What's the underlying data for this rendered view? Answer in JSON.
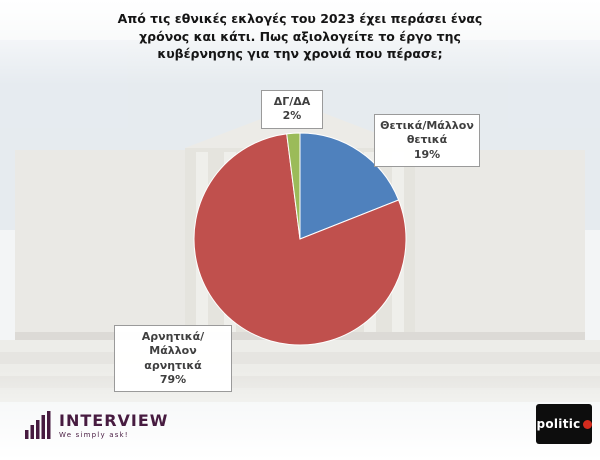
{
  "title": "Από τις εθνικές εκλογές του 2023 έχει περάσει ένας χρόνος και κάτι. Πως αξιολογείτε το έργο της κυβέρνησης για την χρονιά που πέρασε;",
  "chart_data": {
    "type": "pie",
    "labels": [
      "Θετικά/Μάλλον θετικά",
      "Αρνητικά/Μάλλον αρνητικά",
      "ΔΓ/ΔΑ"
    ],
    "keys": [
      "positive",
      "negative",
      "dk-da"
    ],
    "values": [
      19,
      79,
      2
    ],
    "colors": [
      "#4f81bd",
      "#c0504d",
      "#9bbb59"
    ],
    "start_angle_deg": 0,
    "direction": "clockwise",
    "legend": "none",
    "title": "Από τις εθνικές εκλογές του 2023 έχει περάσει ένας χρόνος και κάτι. Πως αξιολογείτε το έργο της κυβέρνησης για την χρονιά που πέρασε;"
  },
  "callouts": {
    "dk_da": {
      "label": "ΔΓ/ΔΑ",
      "value": "2%"
    },
    "positive": {
      "label": "Θετικά/Μάλλον θετικά",
      "value": "19%"
    },
    "negative": {
      "label": "Αρνητικά/Μάλλον αρνητικά",
      "value": "79%"
    }
  },
  "footer": {
    "interview_brand": "INTERVIEW",
    "interview_tagline": "We simply ask!",
    "politic_brand": "politic"
  }
}
